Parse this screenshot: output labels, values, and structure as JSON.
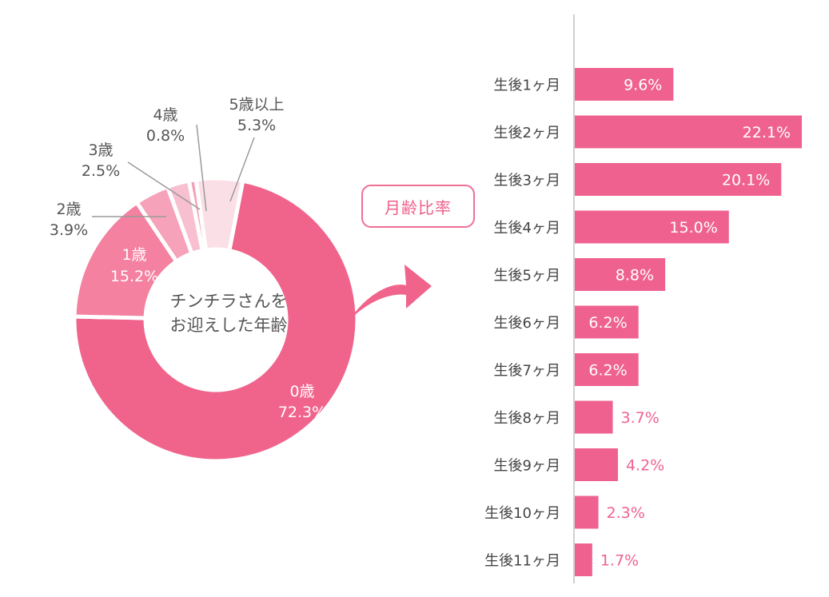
{
  "chart_data": [
    {
      "type": "pie",
      "variant": "donut",
      "center_label": [
        "チンチラさんを",
        "お迎えした年齢"
      ],
      "slices": [
        {
          "label": "0歳",
          "value": 72.3,
          "value_label": "72.3%",
          "color": "#f0648c"
        },
        {
          "label": "1歳",
          "value": 15.2,
          "value_label": "15.2%",
          "color": "#f3819f"
        },
        {
          "label": "2歳",
          "value": 3.9,
          "value_label": "3.9%",
          "color": "#f6a2bb"
        },
        {
          "label": "3歳",
          "value": 2.5,
          "value_label": "2.5%",
          "color": "#f8bfd0"
        },
        {
          "label": "4歳",
          "value": 0.8,
          "value_label": "0.8%",
          "color": "#f4a0b8"
        },
        {
          "label": "5歳以上",
          "value": 5.3,
          "value_label": "5.3%",
          "color": "#fbdfe7"
        }
      ]
    },
    {
      "type": "bar",
      "orientation": "horizontal",
      "title": "月齢比率",
      "categories": [
        "生後1ヶ月",
        "生後2ヶ月",
        "生後3ヶ月",
        "生後4ヶ月",
        "生後5ヶ月",
        "生後6ヶ月",
        "生後7ヶ月",
        "生後8ヶ月",
        "生後9ヶ月",
        "生後10ヶ月",
        "生後11ヶ月"
      ],
      "values": [
        9.6,
        22.1,
        20.1,
        15.0,
        8.8,
        6.2,
        6.2,
        3.7,
        4.2,
        2.3,
        1.7
      ],
      "value_labels": [
        "9.6%",
        "22.1%",
        "20.1%",
        "15.0%",
        "8.8%",
        "6.2%",
        "6.2%",
        "3.7%",
        "4.2%",
        "2.3%",
        "1.7%"
      ],
      "bar_color": "#ef6290",
      "xlim": [
        0,
        22.1
      ]
    }
  ],
  "colors": {
    "leader_line": "#9a9a9a",
    "axis_line": "#a0a0a0",
    "label_text": "#555555",
    "arrow": "#f0648c"
  }
}
